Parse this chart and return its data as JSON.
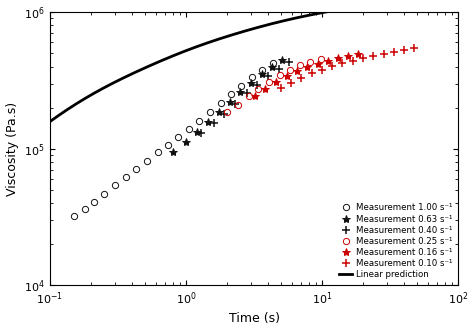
{
  "xlabel": "Time (s)",
  "ylabel": "Viscosity (Pa.s)",
  "xlim": [
    0.1,
    100
  ],
  "ylim": [
    10000.0,
    1000000.0
  ],
  "background_color": "#ffffff",
  "linear_pred": {
    "label": "Linear prediction",
    "color": "#000000",
    "lw": 2.0,
    "t0": 0.1,
    "t1": 100,
    "eta_inf": 420000,
    "modes": [
      {
        "eta_i": 50000,
        "lambda_i": 0.1
      },
      {
        "eta_i": 80000,
        "lambda_i": 0.5
      },
      {
        "eta_i": 100000,
        "lambda_i": 2.0
      },
      {
        "eta_i": 110000,
        "lambda_i": 8.0
      },
      {
        "eta_i": 80000,
        "lambda_i": 30.0
      }
    ]
  },
  "series": [
    {
      "label": "Measurement 1.00 s⁻¹",
      "marker": "o",
      "color": "#111111",
      "mfc": "none",
      "ms": 4.5,
      "mew": 0.7,
      "times": [
        0.15,
        0.18,
        0.21,
        0.25,
        0.3,
        0.36,
        0.43,
        0.52,
        0.62,
        0.74,
        0.88,
        1.05,
        1.25,
        1.5,
        1.8,
        2.15,
        2.55,
        3.05,
        3.65,
        4.35
      ],
      "eta": [
        32000.0,
        36000.0,
        41000.0,
        47000.0,
        54000.0,
        62000.0,
        71000.0,
        82000.0,
        94000.0,
        107000.0,
        122000.0,
        139000.0,
        160000.0,
        185000.0,
        215000.0,
        250000.0,
        290000.0,
        335000.0,
        380000.0,
        425000.0
      ]
    },
    {
      "label": "Measurement 0.63 s⁻¹",
      "marker": "*",
      "color": "#111111",
      "mfc": "#111111",
      "ms": 6,
      "mew": 0.7,
      "times": [
        0.8,
        1.0,
        1.2,
        1.45,
        1.75,
        2.1,
        2.5,
        3.0,
        3.6,
        4.3,
        5.1
      ],
      "eta": [
        95000.0,
        112000.0,
        132000.0,
        156000.0,
        185000.0,
        220000.0,
        260000.0,
        305000.0,
        355000.0,
        400000.0,
        445000.0
      ]
    },
    {
      "label": "Measurement 0.40 s⁻¹",
      "marker": "+",
      "color": "#111111",
      "mfc": "#111111",
      "ms": 6,
      "mew": 1.1,
      "times": [
        1.3,
        1.6,
        1.9,
        2.3,
        2.8,
        3.3,
        4.0,
        4.8,
        5.7
      ],
      "eta": [
        130000.0,
        155000.0,
        180000.0,
        212000.0,
        255000.0,
        295000.0,
        340000.0,
        385000.0,
        430000.0
      ]
    },
    {
      "label": "Measurement 0.25 s⁻¹",
      "marker": "o",
      "color": "#cc0000",
      "mfc": "none",
      "ms": 4.5,
      "mew": 0.7,
      "times": [
        2.0,
        2.4,
        2.9,
        3.4,
        4.1,
        4.9,
        5.8,
        6.9,
        8.2,
        9.8
      ],
      "eta": [
        185000.0,
        210000.0,
        242000.0,
        275000.0,
        310000.0,
        345000.0,
        378000.0,
        408000.0,
        432000.0,
        455000.0
      ]
    },
    {
      "label": "Measurement 0.16 s⁻¹",
      "marker": "*",
      "color": "#cc0000",
      "mfc": "#cc0000",
      "ms": 6,
      "mew": 0.7,
      "times": [
        3.2,
        3.8,
        4.6,
        5.5,
        6.5,
        7.8,
        9.3,
        11.0,
        13.0,
        15.5,
        18.5
      ],
      "eta": [
        245000.0,
        275000.0,
        308000.0,
        340000.0,
        368000.0,
        395000.0,
        420000.0,
        442000.0,
        462000.0,
        480000.0,
        498000.0
      ]
    },
    {
      "label": "Measurement 0.10 s⁻¹",
      "marker": "+",
      "color": "#cc0000",
      "mfc": "#cc0000",
      "ms": 6,
      "mew": 1.1,
      "times": [
        5.0,
        5.9,
        7.0,
        8.4,
        10.0,
        11.9,
        14.1,
        16.8,
        20.0,
        23.8,
        28.3,
        33.7,
        40.0,
        47.6
      ],
      "eta": [
        278000.0,
        305000.0,
        330000.0,
        356000.0,
        380000.0,
        402000.0,
        422000.0,
        442000.0,
        462000.0,
        480000.0,
        498000.0,
        515000.0,
        532000.0,
        550000.0
      ]
    }
  ]
}
